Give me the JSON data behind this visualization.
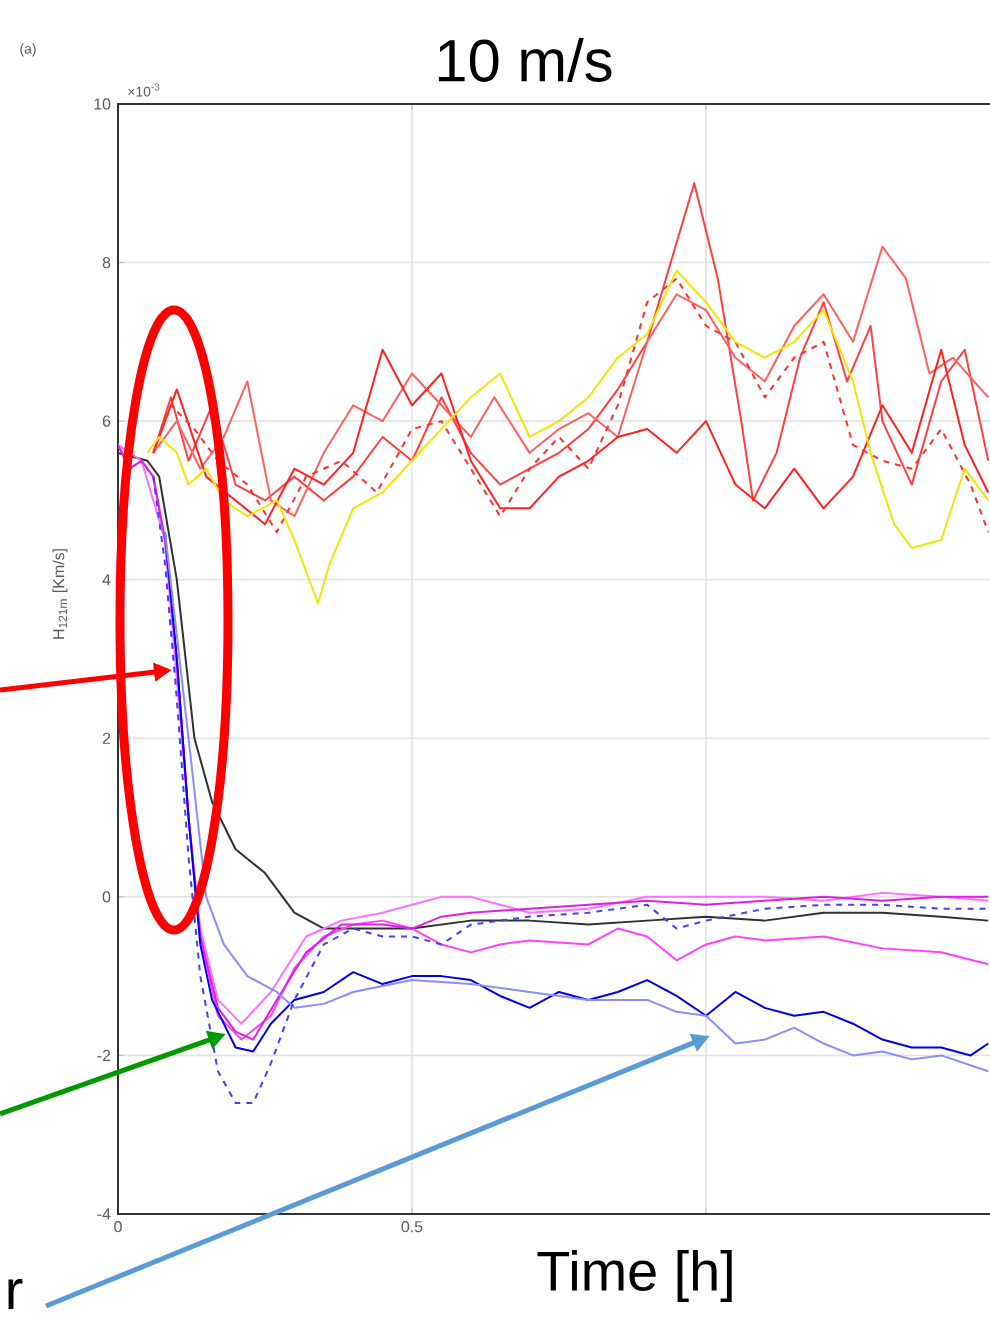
{
  "chart_data": {
    "type": "line",
    "title": "10 m/s",
    "xlabel": "Time [h]",
    "ylabel": "H$_{121m}$ [Km/s]",
    "annotations": [
      "(a)",
      "×10$^{-3}$",
      "r"
    ],
    "xlim": [
      0,
      1.5
    ],
    "xticks": [
      0,
      0.5,
      {
        "value": 1,
        "label": null
      }
    ],
    "ylim": [
      -4,
      10
    ],
    "yticks": [
      -4,
      -2,
      0,
      2,
      4,
      6,
      8,
      10
    ],
    "grid": true,
    "marker": "none",
    "series": [
      {
        "color": "#ff4040",
        "x": [
          0.06,
          0.09,
          0.12,
          0.16,
          0.2,
          0.25,
          0.3,
          0.35,
          0.4,
          0.45,
          0.5,
          0.55,
          0.6,
          0.65,
          0.7,
          0.75,
          0.8,
          0.85,
          0.9,
          0.98,
          1.02,
          1.06,
          1.08,
          1.12,
          1.16,
          1.2,
          1.24,
          1.28,
          1.3,
          1.35,
          1.4,
          1.44,
          1.48
        ],
        "values": [
          5.6,
          6.3,
          5.5,
          6.2,
          5.2,
          5.0,
          5.3,
          5.0,
          5.3,
          5.8,
          5.5,
          6.3,
          5.6,
          5.2,
          5.4,
          5.6,
          5.9,
          6.4,
          7.0,
          9.0,
          7.8,
          6.0,
          5.0,
          5.6,
          6.8,
          7.5,
          6.5,
          7.2,
          6.0,
          5.2,
          6.5,
          6.9,
          5.5
        ]
      },
      {
        "color": "#ff6060",
        "x": [
          0.06,
          0.1,
          0.14,
          0.18,
          0.22,
          0.26,
          0.3,
          0.35,
          0.4,
          0.45,
          0.5,
          0.55,
          0.6,
          0.64,
          0.7,
          0.75,
          0.8,
          0.85,
          0.9,
          0.95,
          1.0,
          1.05,
          1.1,
          1.15,
          1.2,
          1.25,
          1.3,
          1.34,
          1.38,
          1.42,
          1.48
        ],
        "values": [
          5.6,
          6.0,
          5.4,
          5.8,
          6.5,
          5.0,
          4.8,
          5.6,
          6.2,
          6.0,
          6.6,
          6.2,
          5.8,
          6.3,
          5.6,
          5.9,
          6.1,
          5.8,
          7.0,
          7.6,
          7.4,
          6.8,
          6.5,
          7.2,
          7.6,
          7.0,
          8.2,
          7.8,
          6.6,
          6.8,
          6.3
        ]
      },
      {
        "color": "#ff2020",
        "x": [
          0.06,
          0.1,
          0.15,
          0.2,
          0.25,
          0.3,
          0.35,
          0.4,
          0.45,
          0.5,
          0.55,
          0.6,
          0.65,
          0.7,
          0.75,
          0.8,
          0.85,
          0.9,
          0.95,
          1.0,
          1.05,
          1.1,
          1.15,
          1.2,
          1.25,
          1.3,
          1.35,
          1.4,
          1.44,
          1.48
        ],
        "values": [
          5.6,
          6.4,
          5.3,
          5.0,
          4.7,
          5.4,
          5.2,
          5.6,
          6.9,
          6.2,
          6.6,
          5.5,
          4.9,
          4.9,
          5.3,
          5.5,
          5.8,
          5.9,
          5.6,
          6.0,
          5.2,
          4.9,
          5.4,
          4.9,
          5.3,
          6.2,
          5.6,
          6.9,
          5.7,
          5.1
        ]
      },
      {
        "color": "#ff3030",
        "line_style": "dashed",
        "x": [
          0.06,
          0.09,
          0.13,
          0.17,
          0.22,
          0.27,
          0.32,
          0.38,
          0.44,
          0.5,
          0.55,
          0.6,
          0.65,
          0.7,
          0.75,
          0.8,
          0.85,
          0.9,
          0.95,
          1.0,
          1.05,
          1.1,
          1.15,
          1.2,
          1.25,
          1.3,
          1.35,
          1.4,
          1.45,
          1.48
        ],
        "values": [
          5.6,
          6.2,
          5.9,
          5.5,
          5.2,
          4.6,
          5.3,
          5.5,
          5.1,
          5.9,
          6.0,
          5.4,
          4.8,
          5.4,
          5.8,
          5.4,
          6.2,
          7.5,
          7.8,
          7.2,
          7.0,
          6.3,
          6.8,
          7.0,
          5.7,
          5.5,
          5.4,
          5.9,
          5.2,
          4.6
        ]
      },
      {
        "color": "#f2e600",
        "x": [
          0.05,
          0.07,
          0.1,
          0.12,
          0.15,
          0.18,
          0.22,
          0.27,
          0.3,
          0.32,
          0.34,
          0.36,
          0.4,
          0.45,
          0.5,
          0.55,
          0.6,
          0.65,
          0.7,
          0.75,
          0.8,
          0.85,
          0.9,
          0.95,
          1.0,
          1.05,
          1.1,
          1.15,
          1.2,
          1.25,
          1.28,
          1.32,
          1.35,
          1.4,
          1.44,
          1.48
        ],
        "values": [
          5.6,
          5.8,
          5.6,
          5.2,
          5.4,
          5.0,
          4.8,
          5.0,
          4.5,
          4.1,
          3.7,
          4.2,
          4.9,
          5.1,
          5.5,
          5.9,
          6.3,
          6.6,
          5.8,
          6.0,
          6.3,
          6.8,
          7.1,
          7.9,
          7.5,
          7.0,
          6.8,
          7.0,
          7.4,
          6.5,
          5.6,
          4.7,
          4.4,
          4.5,
          5.4,
          5.0
        ]
      },
      {
        "color": "#303030",
        "x": [
          0.0,
          0.05,
          0.07,
          0.1,
          0.13,
          0.16,
          0.2,
          0.25,
          0.3,
          0.35,
          0.4,
          0.5,
          0.6,
          0.7,
          0.8,
          0.9,
          1.0,
          1.1,
          1.2,
          1.3,
          1.4,
          1.48
        ],
        "values": [
          5.6,
          5.5,
          5.3,
          4.0,
          2.0,
          1.2,
          0.6,
          0.3,
          -0.2,
          -0.4,
          -0.4,
          -0.4,
          -0.3,
          -0.3,
          -0.35,
          -0.3,
          -0.25,
          -0.3,
          -0.2,
          -0.2,
          -0.25,
          -0.3
        ]
      },
      {
        "color": "#ff40ff",
        "x": [
          0.0,
          0.02,
          0.04,
          0.06,
          0.08,
          0.1,
          0.12,
          0.14,
          0.17,
          0.21,
          0.26,
          0.3,
          0.35,
          0.4,
          0.45,
          0.5,
          0.55,
          0.6,
          0.65,
          0.7,
          0.8,
          0.85,
          0.9,
          0.95,
          1.0,
          1.05,
          1.1,
          1.2,
          1.3,
          1.4,
          1.48
        ],
        "values": [
          5.7,
          5.4,
          5.5,
          5.3,
          4.5,
          3.0,
          1.0,
          -0.5,
          -1.5,
          -1.8,
          -1.5,
          -0.9,
          -0.5,
          -0.35,
          -0.3,
          -0.4,
          -0.6,
          -0.7,
          -0.6,
          -0.55,
          -0.6,
          -0.4,
          -0.5,
          -0.8,
          -0.6,
          -0.5,
          -0.55,
          -0.5,
          -0.65,
          -0.7,
          -0.85
        ]
      },
      {
        "color": "#ff70ff",
        "x": [
          0.0,
          0.04,
          0.08,
          0.12,
          0.14,
          0.17,
          0.21,
          0.26,
          0.32,
          0.38,
          0.45,
          0.5,
          0.55,
          0.6,
          0.65,
          0.7,
          0.8,
          0.9,
          1.0,
          1.1,
          1.2,
          1.3,
          1.4,
          1.48
        ],
        "values": [
          5.7,
          5.5,
          4.5,
          1.0,
          -0.4,
          -1.3,
          -1.6,
          -1.2,
          -0.5,
          -0.3,
          -0.2,
          -0.1,
          0.0,
          0.0,
          -0.1,
          -0.2,
          -0.15,
          0.0,
          0.0,
          0.0,
          -0.05,
          0.05,
          0.0,
          -0.05
        ]
      },
      {
        "color": "#e020e0",
        "x": [
          0.0,
          0.02,
          0.04,
          0.06,
          0.08,
          0.1,
          0.12,
          0.14,
          0.17,
          0.2,
          0.23,
          0.27,
          0.32,
          0.38,
          0.45,
          0.5,
          0.55,
          0.6,
          0.7,
          0.8,
          0.9,
          1.0,
          1.1,
          1.2,
          1.3,
          1.4,
          1.48
        ],
        "values": [
          5.7,
          5.4,
          5.5,
          5.3,
          4.5,
          3.0,
          1.0,
          -0.5,
          -1.4,
          -1.7,
          -1.8,
          -1.3,
          -0.7,
          -0.35,
          -0.35,
          -0.4,
          -0.25,
          -0.2,
          -0.15,
          -0.1,
          -0.05,
          -0.1,
          -0.05,
          0.0,
          -0.05,
          0.0,
          0.0
        ]
      },
      {
        "color": "#0000e6",
        "x": [
          0.08,
          0.1,
          0.12,
          0.14,
          0.16,
          0.2,
          0.23,
          0.26,
          0.3,
          0.35,
          0.4,
          0.45,
          0.5,
          0.55,
          0.6,
          0.65,
          0.7,
          0.75,
          0.8,
          0.85,
          0.9,
          0.95,
          1.0,
          1.05,
          1.1,
          1.15,
          1.2,
          1.25,
          1.3,
          1.35,
          1.4,
          1.45,
          1.48
        ],
        "values": [
          4.6,
          3.0,
          1.0,
          -0.6,
          -1.3,
          -1.9,
          -1.95,
          -1.6,
          -1.3,
          -1.2,
          -0.95,
          -1.1,
          -1.0,
          -1.0,
          -1.05,
          -1.25,
          -1.4,
          -1.2,
          -1.3,
          -1.2,
          -1.05,
          -1.25,
          -1.5,
          -1.2,
          -1.4,
          -1.5,
          -1.45,
          -1.6,
          -1.8,
          -1.9,
          -1.9,
          -2.0,
          -1.85
        ]
      },
      {
        "color": "#8c8cff",
        "x": [
          0.08,
          0.12,
          0.15,
          0.18,
          0.22,
          0.27,
          0.3,
          0.35,
          0.4,
          0.5,
          0.6,
          0.7,
          0.8,
          0.9,
          0.95,
          1.0,
          1.05,
          1.1,
          1.15,
          1.2,
          1.25,
          1.3,
          1.35,
          1.4,
          1.48
        ],
        "values": [
          4.6,
          2.0,
          0.0,
          -0.6,
          -1.0,
          -1.2,
          -1.4,
          -1.35,
          -1.2,
          -1.05,
          -1.1,
          -1.2,
          -1.3,
          -1.3,
          -1.45,
          -1.5,
          -1.85,
          -1.8,
          -1.65,
          -1.85,
          -2.0,
          -1.95,
          -2.05,
          -2.0,
          -2.2
        ]
      },
      {
        "color": "#4040ff",
        "line_style": "dashed",
        "x": [
          0.06,
          0.08,
          0.1,
          0.12,
          0.14,
          0.17,
          0.2,
          0.23,
          0.26,
          0.3,
          0.35,
          0.4,
          0.45,
          0.5,
          0.55,
          0.6,
          0.7,
          0.8,
          0.9,
          0.95,
          1.0,
          1.1,
          1.2,
          1.3,
          1.4,
          1.48
        ],
        "values": [
          5.3,
          4.2,
          2.5,
          0.5,
          -1.0,
          -2.2,
          -2.6,
          -2.6,
          -2.1,
          -1.3,
          -0.6,
          -0.4,
          -0.5,
          -0.5,
          -0.6,
          -0.35,
          -0.25,
          -0.2,
          -0.1,
          -0.4,
          -0.3,
          -0.15,
          -0.1,
          -0.1,
          -0.15,
          -0.15
        ]
      }
    ]
  }
}
